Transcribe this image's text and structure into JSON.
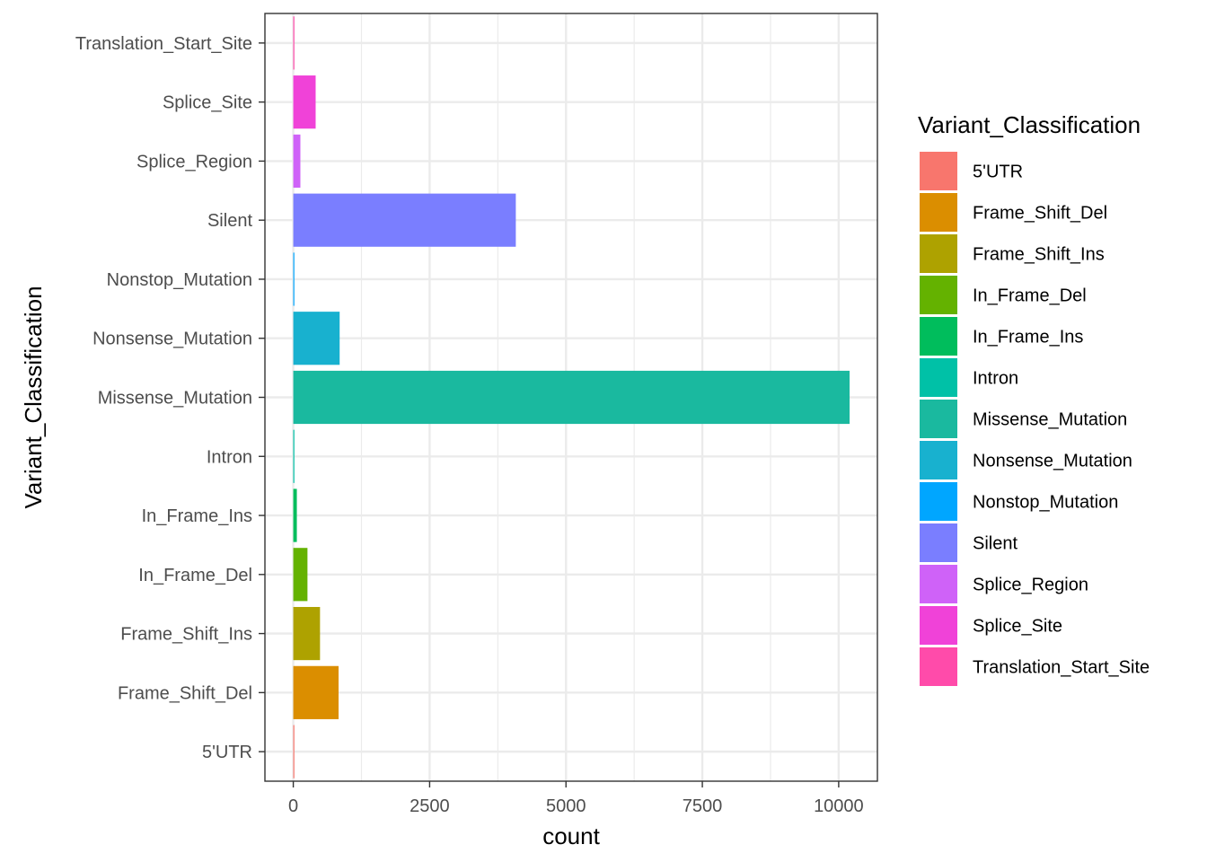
{
  "chart_data": {
    "type": "bar",
    "orientation": "horizontal",
    "categories": [
      "5'UTR",
      "Frame_Shift_Del",
      "Frame_Shift_Ins",
      "In_Frame_Del",
      "In_Frame_Ins",
      "Intron",
      "Missense_Mutation",
      "Nonsense_Mutation",
      "Nonstop_Mutation",
      "Silent",
      "Splice_Region",
      "Splice_Site",
      "Translation_Start_Site"
    ],
    "values": [
      5,
      830,
      490,
      260,
      65,
      12,
      10200,
      850,
      15,
      4080,
      130,
      410,
      6
    ],
    "colors": [
      "#F8766D",
      "#DB8E00",
      "#AEA200",
      "#64B200",
      "#00BD5C",
      "#00C1A7",
      "#1AB99F",
      "#18B1CF",
      "#00A6FF",
      "#7A7EFF",
      "#CF62F8",
      "#F042D8",
      "#FF4BAA"
    ],
    "xlabel": "count",
    "ylabel": "Variant_Classification",
    "xticks": [
      0,
      2500,
      5000,
      7500,
      10000
    ],
    "xtick_labels": [
      "0",
      "2500",
      "5000",
      "7500",
      "10000"
    ],
    "xlim": [
      -520,
      10710
    ],
    "grid": true,
    "legend": {
      "title": "Variant_Classification",
      "position": "right",
      "entries": [
        "5'UTR",
        "Frame_Shift_Del",
        "Frame_Shift_Ins",
        "In_Frame_Del",
        "In_Frame_Ins",
        "Intron",
        "Missense_Mutation",
        "Nonsense_Mutation",
        "Nonstop_Mutation",
        "Silent",
        "Splice_Region",
        "Splice_Site",
        "Translation_Start_Site"
      ],
      "colors": [
        "#F8766D",
        "#DB8E00",
        "#AEA200",
        "#64B200",
        "#00BD5C",
        "#00C1A7",
        "#1AB99F",
        "#18B1CF",
        "#00A6FF",
        "#7A7EFF",
        "#CF62F8",
        "#F042D8",
        "#FF4BAA"
      ]
    }
  }
}
